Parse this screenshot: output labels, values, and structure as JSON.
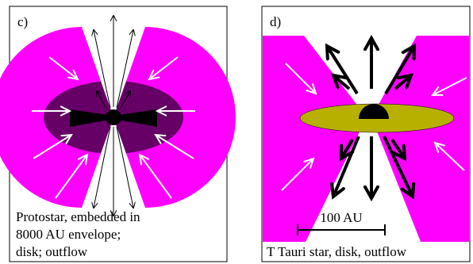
{
  "panels": [
    {
      "label": "c)",
      "caption": [
        "Protostar, embedded in",
        "8000 AU envelope;",
        "disk; outflow"
      ]
    },
    {
      "label": "d)",
      "scale_bar": "100 AU",
      "caption": [
        "T Tauri star, disk, outflow"
      ]
    }
  ]
}
